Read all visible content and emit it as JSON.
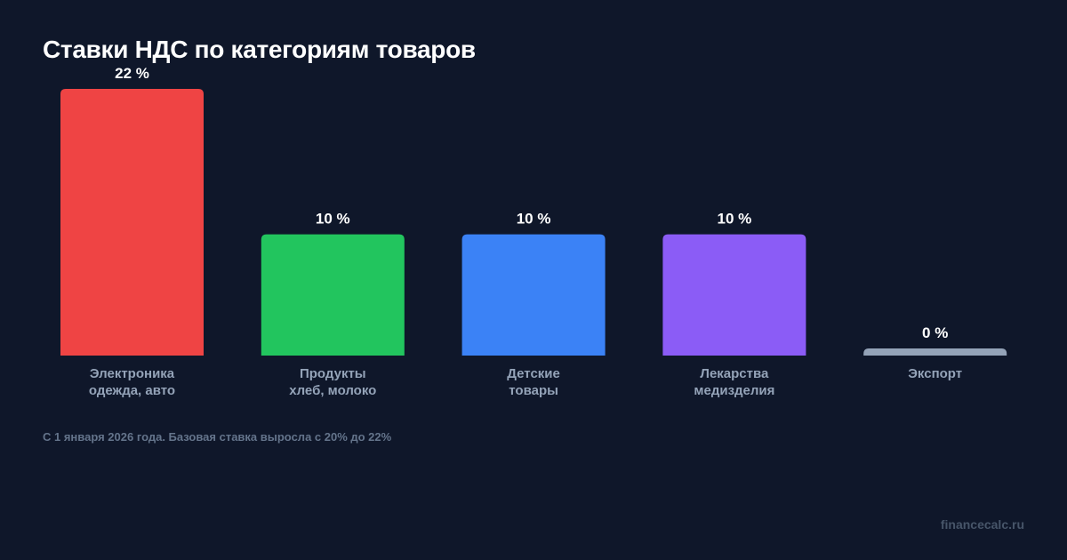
{
  "chart_data": {
    "type": "bar",
    "title": "Ставки НДС по категориям товаров",
    "categories": [
      [
        "Электроника",
        "одежда, авто"
      ],
      [
        "Продукты",
        "хлеб, молоко"
      ],
      [
        "Детские",
        "товары"
      ],
      [
        "Лекарства",
        "медизделия"
      ],
      [
        "Экспорт"
      ]
    ],
    "values": [
      22,
      10,
      10,
      10,
      0
    ],
    "value_labels": [
      "22 %",
      "10 %",
      "10 %",
      "10 %",
      "0 %"
    ],
    "colors": [
      "#ef4444",
      "#22c55e",
      "#3b82f6",
      "#8b5cf6",
      "#94a3b8"
    ],
    "ylim": [
      0,
      22
    ],
    "grid": false,
    "xlabel": "",
    "ylabel": ""
  },
  "footnote": "С 1 января 2026 года. Базовая ставка выросла с 20% до 22%",
  "brand": "financecalc.ru",
  "colors": {
    "background": "#0f172a",
    "label": "#94a3b8",
    "value": "#ffffff"
  }
}
